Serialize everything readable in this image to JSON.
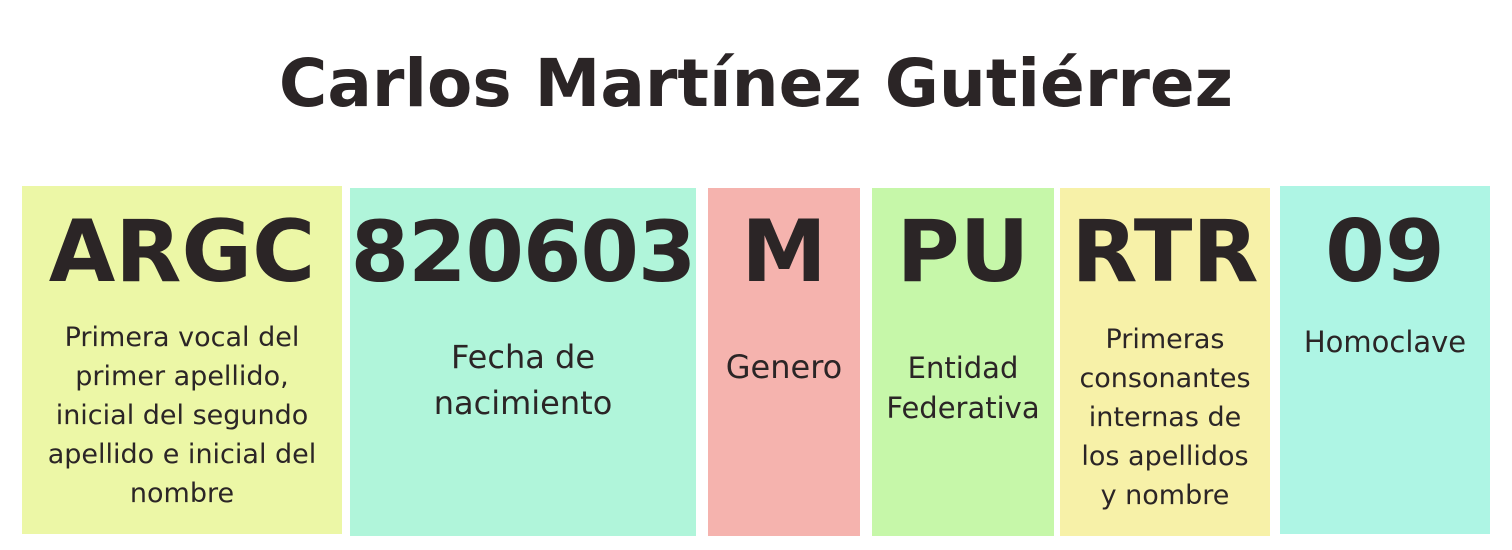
{
  "title": "Carlos Martínez Gutiérrez",
  "segments": [
    {
      "code": "ARGC",
      "description": "Primera vocal del\nprimer apellido,\ninicial del segundo\napellido e inicial del\nnombre",
      "color": "#ecf7a6"
    },
    {
      "code": "820603",
      "description": "Fecha de\nnacimiento",
      "color": "#b0f5da"
    },
    {
      "code": "M",
      "description": "Genero",
      "color": "#f5b3ae"
    },
    {
      "code": "PU",
      "description": "Entidad\nFederativa",
      "color": "#c6f7a9"
    },
    {
      "code": "RTR",
      "description": "Primeras\nconsonantes\ninternas de\nlos apellidos\ny nombre",
      "color": "#f7f1a8"
    },
    {
      "code": "09",
      "description": "Homoclave",
      "color": "#aef5e4"
    }
  ],
  "colors": {
    "text": "#2b2526",
    "background": "#ffffff"
  }
}
